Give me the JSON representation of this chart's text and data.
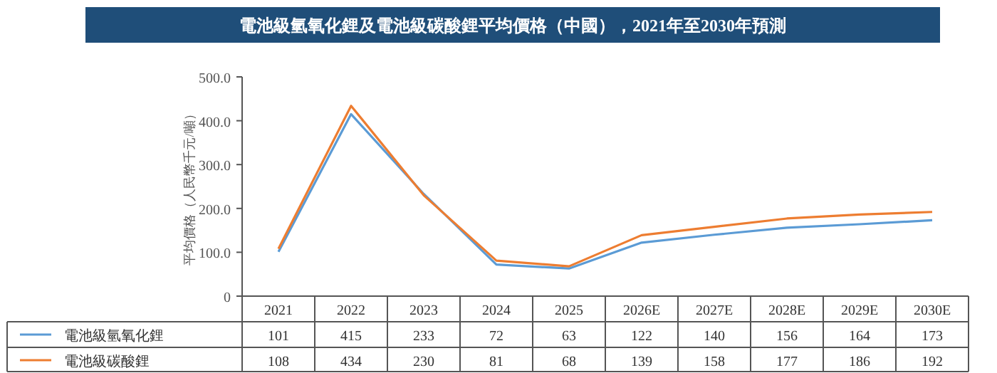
{
  "chart_data": {
    "type": "line",
    "title": "電池級氫氧化鋰及電池級碳酸鋰平均價格（中國），2021年至2030年預測",
    "ylabel": "平均價格（人民幣千元/噸）",
    "categories": [
      "2021",
      "2022",
      "2023",
      "2024",
      "2025",
      "2026E",
      "2027E",
      "2028E",
      "2029E",
      "2030E"
    ],
    "series": [
      {
        "name": "電池級氫氧化鋰",
        "color": "#5b9bd5",
        "values": [
          101,
          415,
          233,
          72,
          63,
          122,
          140,
          156,
          164,
          173
        ]
      },
      {
        "name": "電池級碳酸鋰",
        "color": "#ed7d31",
        "values": [
          108,
          434,
          230,
          81,
          68,
          139,
          158,
          177,
          186,
          192
        ]
      }
    ],
    "ylim": [
      0,
      500
    ],
    "yticks": [
      0,
      {
        "value": 100,
        "label": "100.0"
      },
      {
        "value": 200,
        "label": "200.0"
      },
      {
        "value": 300,
        "label": "300.0"
      },
      {
        "value": 400,
        "label": "400.0"
      },
      {
        "value": 500,
        "label": "500.0"
      }
    ],
    "data_labels": true,
    "legend": "bottom left",
    "grid": false,
    "marker": "none",
    "line_style": "solid"
  }
}
